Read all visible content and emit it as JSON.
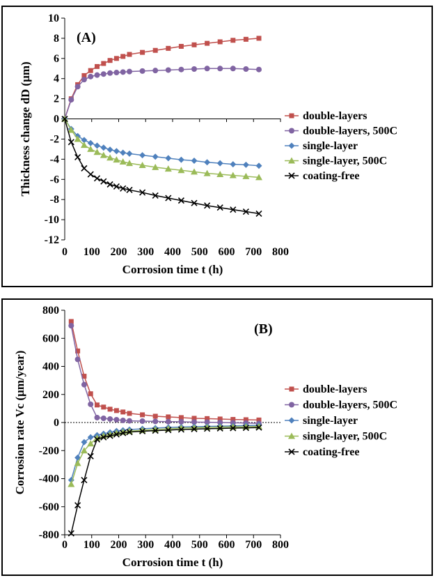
{
  "chart_data": [
    {
      "type": "line",
      "panel_label": "(A)",
      "xlabel": "Corrosion time t (h)",
      "ylabel": "Thickness change dD (μm)",
      "xlim": [
        0,
        800
      ],
      "ylim": [
        -12,
        10
      ],
      "xticks": [
        0,
        100,
        200,
        300,
        400,
        500,
        600,
        700,
        800
      ],
      "yticks": [
        -12,
        -10,
        -8,
        -6,
        -4,
        -2,
        0,
        2,
        4,
        6,
        8,
        10
      ],
      "grid": false,
      "legend_position": "right",
      "series": [
        {
          "name": "double-layers",
          "color": "#c0504d",
          "marker": "square",
          "x": [
            0,
            24,
            48,
            72,
            96,
            120,
            144,
            168,
            192,
            216,
            240,
            288,
            336,
            384,
            432,
            480,
            528,
            576,
            624,
            672,
            720
          ],
          "y": [
            0,
            2.0,
            3.4,
            4.3,
            4.8,
            5.2,
            5.5,
            5.8,
            6.0,
            6.2,
            6.4,
            6.6,
            6.8,
            7.0,
            7.2,
            7.35,
            7.5,
            7.65,
            7.8,
            7.9,
            8.0
          ]
        },
        {
          "name": "double-layers, 500C",
          "color": "#8064a2",
          "marker": "circle",
          "x": [
            0,
            24,
            48,
            72,
            96,
            120,
            144,
            168,
            192,
            216,
            240,
            288,
            336,
            384,
            432,
            480,
            528,
            576,
            624,
            672,
            720
          ],
          "y": [
            0,
            1.9,
            3.2,
            3.9,
            4.2,
            4.35,
            4.45,
            4.55,
            4.6,
            4.65,
            4.7,
            4.75,
            4.8,
            4.85,
            4.9,
            4.95,
            5.0,
            5.0,
            5.0,
            4.95,
            4.9
          ]
        },
        {
          "name": "single-layer",
          "color": "#4f81bd",
          "marker": "diamond",
          "x": [
            0,
            24,
            48,
            72,
            96,
            120,
            144,
            168,
            192,
            216,
            240,
            288,
            336,
            384,
            432,
            480,
            528,
            576,
            624,
            672,
            720
          ],
          "y": [
            0,
            -1.0,
            -1.7,
            -2.1,
            -2.4,
            -2.65,
            -2.85,
            -3.05,
            -3.2,
            -3.35,
            -3.45,
            -3.6,
            -3.75,
            -3.9,
            -4.05,
            -4.15,
            -4.3,
            -4.4,
            -4.5,
            -4.55,
            -4.65
          ]
        },
        {
          "name": "single-layer, 500C",
          "color": "#9bbb59",
          "marker": "triangle",
          "x": [
            0,
            24,
            48,
            72,
            96,
            120,
            144,
            168,
            192,
            216,
            240,
            288,
            336,
            384,
            432,
            480,
            528,
            576,
            624,
            672,
            720
          ],
          "y": [
            0,
            -1.1,
            -2.0,
            -2.6,
            -3.0,
            -3.3,
            -3.6,
            -3.85,
            -4.05,
            -4.25,
            -4.4,
            -4.6,
            -4.8,
            -4.95,
            -5.1,
            -5.25,
            -5.4,
            -5.5,
            -5.6,
            -5.7,
            -5.8
          ]
        },
        {
          "name": "coating-free",
          "color": "#000000",
          "marker": "x",
          "x": [
            0,
            24,
            48,
            72,
            96,
            120,
            144,
            168,
            192,
            216,
            240,
            288,
            336,
            384,
            432,
            480,
            528,
            576,
            624,
            672,
            720
          ],
          "y": [
            0,
            -2.3,
            -3.8,
            -4.9,
            -5.5,
            -5.9,
            -6.2,
            -6.5,
            -6.7,
            -6.9,
            -7.05,
            -7.3,
            -7.6,
            -7.85,
            -8.1,
            -8.35,
            -8.6,
            -8.8,
            -9.0,
            -9.2,
            -9.4
          ]
        }
      ]
    },
    {
      "type": "line",
      "panel_label": "(B)",
      "xlabel": "Corrosion time t (h)",
      "ylabel": "Corrosion rate Vc (μm/year)",
      "xlim": [
        0,
        800
      ],
      "ylim": [
        -800,
        800
      ],
      "xticks": [
        0,
        100,
        200,
        300,
        400,
        500,
        600,
        700,
        800
      ],
      "yticks": [
        -800,
        -600,
        -400,
        -200,
        0,
        200,
        400,
        600,
        800
      ],
      "zero_line": "dotted",
      "grid": false,
      "legend_position": "right",
      "series": [
        {
          "name": "double-layers",
          "color": "#c0504d",
          "marker": "square",
          "x": [
            24,
            48,
            72,
            96,
            120,
            144,
            168,
            192,
            216,
            240,
            288,
            336,
            384,
            432,
            480,
            528,
            576,
            624,
            672,
            720
          ],
          "y": [
            720,
            510,
            330,
            205,
            125,
            110,
            95,
            85,
            75,
            65,
            55,
            45,
            40,
            35,
            30,
            28,
            25,
            22,
            20,
            18
          ]
        },
        {
          "name": "double-layers, 500C",
          "color": "#8064a2",
          "marker": "circle",
          "x": [
            24,
            48,
            72,
            96,
            120,
            144,
            168,
            192,
            216,
            240,
            288,
            336,
            384,
            432,
            480,
            528,
            576,
            624,
            672,
            720
          ],
          "y": [
            690,
            450,
            270,
            130,
            35,
            30,
            25,
            20,
            15,
            12,
            10,
            8,
            6,
            5,
            3,
            2,
            0,
            -2,
            -4,
            -6
          ]
        },
        {
          "name": "single-layer",
          "color": "#4f81bd",
          "marker": "diamond",
          "x": [
            24,
            48,
            72,
            96,
            120,
            144,
            168,
            192,
            216,
            240,
            288,
            336,
            384,
            432,
            480,
            528,
            576,
            624,
            672,
            720
          ],
          "y": [
            -410,
            -250,
            -140,
            -105,
            -90,
            -80,
            -70,
            -60,
            -55,
            -50,
            -45,
            -40,
            -35,
            -32,
            -30,
            -28,
            -26,
            -24,
            -22,
            -20
          ]
        },
        {
          "name": "single-layer, 500C",
          "color": "#9bbb59",
          "marker": "triangle",
          "x": [
            24,
            48,
            72,
            96,
            120,
            144,
            168,
            192,
            216,
            240,
            288,
            336,
            384,
            432,
            480,
            528,
            576,
            624,
            672,
            720
          ],
          "y": [
            -440,
            -290,
            -200,
            -150,
            -110,
            -95,
            -85,
            -75,
            -68,
            -62,
            -55,
            -50,
            -45,
            -40,
            -38,
            -35,
            -33,
            -31,
            -30,
            -28
          ]
        },
        {
          "name": "coating-free",
          "color": "#000000",
          "marker": "x",
          "x": [
            24,
            48,
            72,
            96,
            120,
            144,
            168,
            192,
            216,
            240,
            288,
            336,
            384,
            432,
            480,
            528,
            576,
            624,
            672,
            720
          ],
          "y": [
            -790,
            -590,
            -410,
            -240,
            -120,
            -105,
            -95,
            -85,
            -75,
            -68,
            -62,
            -58,
            -54,
            -50,
            -47,
            -44,
            -42,
            -40,
            -38,
            -36
          ]
        }
      ]
    }
  ]
}
